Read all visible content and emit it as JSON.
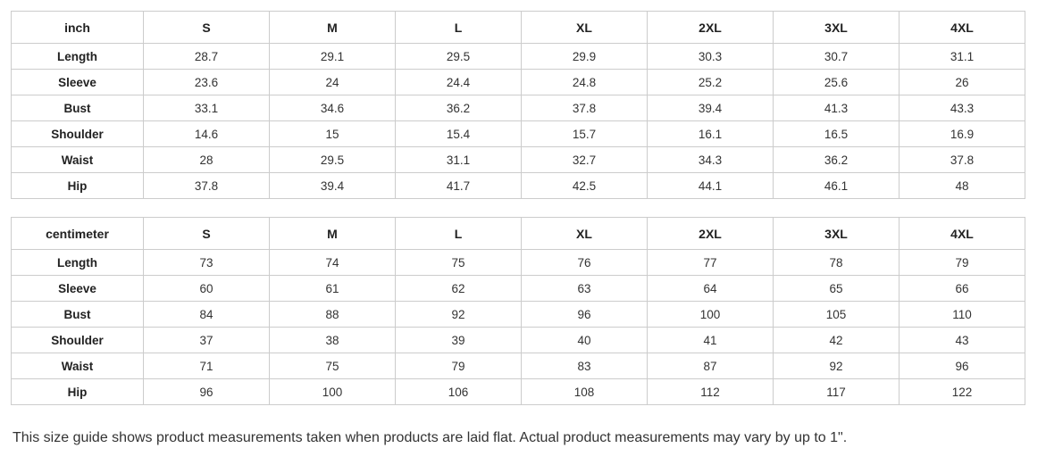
{
  "tables": [
    {
      "unit_label": "inch",
      "sizes": [
        "S",
        "M",
        "L",
        "XL",
        "2XL",
        "3XL",
        "4XL"
      ],
      "rows": [
        {
          "label": "Length",
          "values": [
            "28.7",
            "29.1",
            "29.5",
            "29.9",
            "30.3",
            "30.7",
            "31.1"
          ]
        },
        {
          "label": "Sleeve",
          "values": [
            "23.6",
            "24",
            "24.4",
            "24.8",
            "25.2",
            "25.6",
            "26"
          ]
        },
        {
          "label": "Bust",
          "values": [
            "33.1",
            "34.6",
            "36.2",
            "37.8",
            "39.4",
            "41.3",
            "43.3"
          ]
        },
        {
          "label": "Shoulder",
          "values": [
            "14.6",
            "15",
            "15.4",
            "15.7",
            "16.1",
            "16.5",
            "16.9"
          ]
        },
        {
          "label": "Waist",
          "values": [
            "28",
            "29.5",
            "31.1",
            "32.7",
            "34.3",
            "36.2",
            "37.8"
          ]
        },
        {
          "label": "Hip",
          "values": [
            "37.8",
            "39.4",
            "41.7",
            "42.5",
            "44.1",
            "46.1",
            "48"
          ]
        }
      ]
    },
    {
      "unit_label": "centimeter",
      "sizes": [
        "S",
        "M",
        "L",
        "XL",
        "2XL",
        "3XL",
        "4XL"
      ],
      "rows": [
        {
          "label": "Length",
          "values": [
            "73",
            "74",
            "75",
            "76",
            "77",
            "78",
            "79"
          ]
        },
        {
          "label": "Sleeve",
          "values": [
            "60",
            "61",
            "62",
            "63",
            "64",
            "65",
            "66"
          ]
        },
        {
          "label": "Bust",
          "values": [
            "84",
            "88",
            "92",
            "96",
            "100",
            "105",
            "110"
          ]
        },
        {
          "label": "Shoulder",
          "values": [
            "37",
            "38",
            "39",
            "40",
            "41",
            "42",
            "43"
          ]
        },
        {
          "label": "Waist",
          "values": [
            "71",
            "75",
            "79",
            "83",
            "87",
            "92",
            "96"
          ]
        },
        {
          "label": "Hip",
          "values": [
            "96",
            "100",
            "106",
            "108",
            "112",
            "117",
            "122"
          ]
        }
      ]
    }
  ],
  "footer": {
    "note": "This size guide shows product measurements taken when products are laid flat. Actual product measurements may vary by up to 1\"."
  },
  "colors": {
    "background": "#ffffff",
    "border": "#cccccc",
    "text": "#333333",
    "header_text": "#222222"
  }
}
